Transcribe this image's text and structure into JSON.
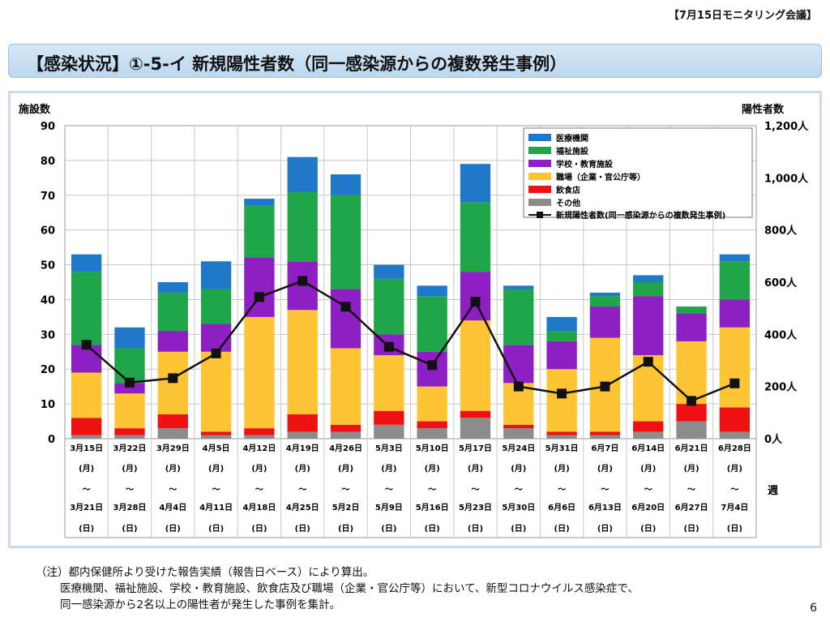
{
  "header": {
    "meeting": "【7月15日モニタリング会議】",
    "title": "【感染状況】①-5-イ 新規陽性者数（同一感染源からの複数発生事例）"
  },
  "notes": [
    "（注）都内保健所より受けた報告実績（報告日ベース）により算出。",
    "医療機関、福祉施設、学校・教育施設、飲食店及び職場（企業・官公庁等）において、新型コロナウイルス感染症で、",
    "同一感染源から2名以上の陽性者が発生した事例を集計。"
  ],
  "page_number": "6",
  "chart_data": {
    "type": "bar",
    "stacked": true,
    "left_axis_label": "施設数",
    "right_axis_label": "陽性者数",
    "x_axis_label": "週",
    "ylim": [
      0,
      90
    ],
    "y_ticks": [
      0,
      10,
      20,
      30,
      40,
      50,
      60,
      70,
      80,
      90
    ],
    "y2lim": [
      0,
      1200
    ],
    "y2_ticks": [
      "0人",
      "200人",
      "400人",
      "600人",
      "800人",
      "1,000人",
      "1,200人"
    ],
    "grid": true,
    "legend_position": "top-right",
    "categories": [
      {
        "start": "3月15日",
        "start_day": "(月)",
        "tilde": "～",
        "end": "3月21日",
        "end_day": "(日)"
      },
      {
        "start": "3月22日",
        "start_day": "(月)",
        "tilde": "～",
        "end": "3月28日",
        "end_day": "(日)"
      },
      {
        "start": "3月29日",
        "start_day": "(月)",
        "tilde": "～",
        "end": "4月4日",
        "end_day": "(日)"
      },
      {
        "start": "4月5日",
        "start_day": "(月)",
        "tilde": "～",
        "end": "4月11日",
        "end_day": "(日)"
      },
      {
        "start": "4月12日",
        "start_day": "(月)",
        "tilde": "～",
        "end": "4月18日",
        "end_day": "(日)"
      },
      {
        "start": "4月19日",
        "start_day": "(月)",
        "tilde": "～",
        "end": "4月25日",
        "end_day": "(日)"
      },
      {
        "start": "4月26日",
        "start_day": "(月)",
        "tilde": "～",
        "end": "5月2日",
        "end_day": "(日)"
      },
      {
        "start": "5月3日",
        "start_day": "(月)",
        "tilde": "～",
        "end": "5月9日",
        "end_day": "(日)"
      },
      {
        "start": "5月10日",
        "start_day": "(月)",
        "tilde": "～",
        "end": "5月16日",
        "end_day": "(日)"
      },
      {
        "start": "5月17日",
        "start_day": "(月)",
        "tilde": "～",
        "end": "5月23日",
        "end_day": "(日)"
      },
      {
        "start": "5月24日",
        "start_day": "(月)",
        "tilde": "～",
        "end": "5月30日",
        "end_day": "(日)"
      },
      {
        "start": "5月31日",
        "start_day": "(月)",
        "tilde": "～",
        "end": "6月6日",
        "end_day": "(日)"
      },
      {
        "start": "6月7日",
        "start_day": "(月)",
        "tilde": "～",
        "end": "6月13日",
        "end_day": "(日)"
      },
      {
        "start": "6月14日",
        "start_day": "(月)",
        "tilde": "～",
        "end": "6月20日",
        "end_day": "(日)"
      },
      {
        "start": "6月21日",
        "start_day": "(月)",
        "tilde": "～",
        "end": "6月27日",
        "end_day": "(日)"
      },
      {
        "start": "6月28日",
        "start_day": "(月)",
        "tilde": "～",
        "end": "7月4日",
        "end_day": "(日)"
      }
    ],
    "series": [
      {
        "name": "その他",
        "color": "#8c8c8c",
        "values": [
          1,
          1,
          3,
          1,
          1,
          2,
          2,
          4,
          3,
          6,
          3,
          1,
          1,
          2,
          5,
          2
        ]
      },
      {
        "name": "飲食店",
        "color": "#ee1111",
        "values": [
          5,
          2,
          4,
          1,
          2,
          5,
          2,
          4,
          2,
          2,
          1,
          1,
          1,
          3,
          5,
          7
        ]
      },
      {
        "name": "職場（企業・官公庁等）",
        "color": "#fec433",
        "values": [
          13,
          10,
          18,
          23,
          32,
          30,
          22,
          16,
          10,
          26,
          12,
          18,
          27,
          19,
          18,
          23
        ]
      },
      {
        "name": "学校・教育施設",
        "color": "#8e1fc2",
        "values": [
          8,
          3,
          6,
          8,
          17,
          14,
          17,
          6,
          10,
          14,
          11,
          8,
          9,
          17,
          8,
          8
        ]
      },
      {
        "name": "福祉施設",
        "color": "#1fa54a",
        "values": [
          21,
          10,
          11,
          10,
          15,
          20,
          27,
          16,
          16,
          20,
          16,
          3,
          3,
          4,
          2,
          11
        ]
      },
      {
        "name": "医療機関",
        "color": "#1f78c8",
        "values": [
          5,
          6,
          3,
          8,
          2,
          10,
          6,
          4,
          3,
          11,
          1,
          4,
          1,
          2,
          0,
          2
        ]
      }
    ],
    "legend_order": [
      "医療機関",
      "福祉施設",
      "学校・教育施設",
      "職場（企業・官公庁等）",
      "飲食店",
      "その他"
    ],
    "line_series": {
      "name": "新規陽性者数(同一感染源からの複数発生事例)",
      "color": "#111111",
      "axis": "right",
      "values": [
        360,
        215,
        232,
        327,
        543,
        605,
        506,
        352,
        282,
        525,
        200,
        173,
        200,
        295,
        145,
        212
      ]
    }
  }
}
